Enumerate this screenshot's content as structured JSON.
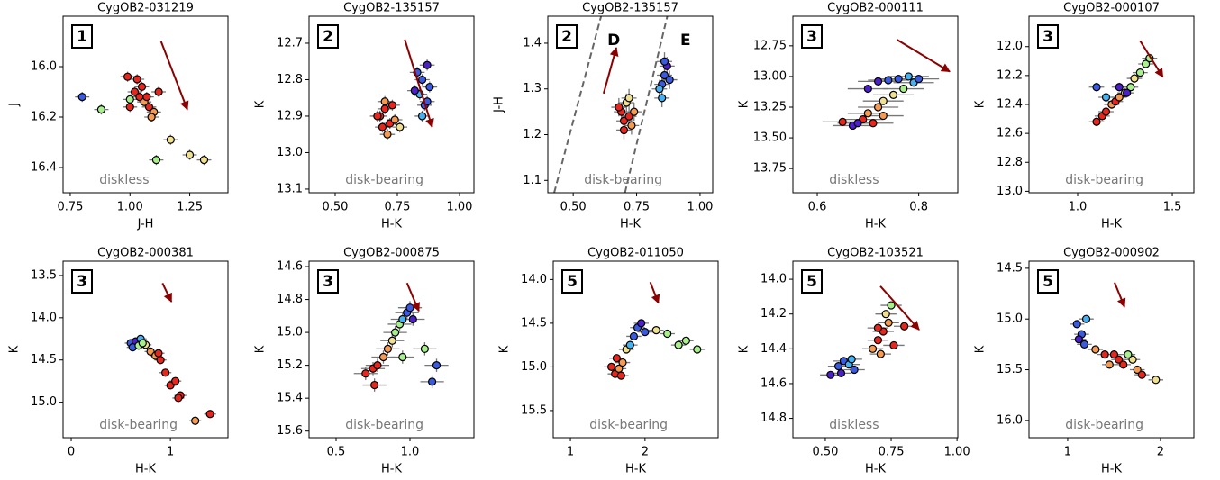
{
  "chart_data": [
    {
      "type": "scatter",
      "title": "CygOB2-031219",
      "xlabel": "J-H",
      "ylabel": "J",
      "panel_label": "1",
      "note": "diskless",
      "y_inverted": true,
      "xlim": [
        0.72,
        1.41
      ],
      "ylim": [
        15.8,
        16.5
      ],
      "xticks": [
        0.75,
        {
          "value": 1.0,
          "label": "1.00"
        },
        1.25
      ],
      "yticks": [
        {
          "value": 16.0,
          "label": "16.0"
        },
        16.2,
        16.4
      ],
      "x": [
        0.8,
        0.88,
        1.17,
        1.11,
        1.25,
        1.31,
        0.99,
        1.02,
        1.04,
        1.06,
        1.08,
        1.1,
        1.0,
        1.05,
        1.07,
        1.03,
        1.09,
        1.12,
        1.0
      ],
      "y": [
        16.12,
        16.17,
        16.29,
        16.37,
        16.35,
        16.37,
        16.04,
        16.1,
        16.12,
        16.14,
        16.16,
        16.18,
        16.13,
        16.08,
        16.12,
        16.05,
        16.2,
        16.1,
        16.16
      ],
      "colors": [
        "#3a5be0",
        "#a8f08c",
        "#f0e090",
        "#a8f08c",
        "#f0e090",
        "#f0e090",
        "#e8261e",
        "#e8261e",
        "#e8261e",
        "#f59a50",
        "#e8261e",
        "#f59a50",
        "#a8f08c",
        "#e8261e",
        "#e8261e",
        "#e8261e",
        "#f59a50",
        "#e8261e",
        "#e8261e"
      ],
      "xerr": 0.03,
      "yerr": 0.02,
      "arrow": {
        "x": [
          1.13,
          1.24
        ],
        "y": [
          15.9,
          16.17
        ]
      },
      "arrow_color": "#8b0000"
    },
    {
      "type": "scatter",
      "title": "CygOB2-135157",
      "xlabel": "H-K",
      "ylabel": "K",
      "panel_label": "2",
      "note": "disk-bearing",
      "y_inverted": true,
      "xlim": [
        0.395,
        1.058
      ],
      "ylim": [
        12.626,
        13.11
      ],
      "xticks": [
        {
          "value": 0.5,
          "label": "0.50"
        },
        0.75,
        {
          "value": 1.0,
          "label": "1.00"
        }
      ],
      "yticks": [
        12.7,
        12.8,
        12.9,
        {
          "value": 13.0,
          "label": "13.0"
        },
        13.1
      ],
      "x": [
        0.68,
        0.7,
        0.72,
        0.74,
        0.69,
        0.71,
        0.73,
        0.76,
        0.7,
        0.67,
        0.83,
        0.85,
        0.87,
        0.84,
        0.86,
        0.88,
        0.82,
        0.85,
        0.87
      ],
      "y": [
        12.9,
        12.88,
        12.92,
        12.91,
        12.93,
        12.95,
        12.87,
        12.93,
        12.86,
        12.9,
        12.78,
        12.8,
        12.76,
        12.84,
        12.87,
        12.82,
        12.83,
        12.9,
        12.86
      ],
      "colors": [
        "#e8261e",
        "#e8261e",
        "#e8261e",
        "#f59a50",
        "#e8261e",
        "#f59a50",
        "#e8261e",
        "#f0e090",
        "#f59a50",
        "#e8261e",
        "#3a5be0",
        "#3a5be0",
        "#4b1fc9",
        "#46b0f0",
        "#3a5be0",
        "#3a5be0",
        "#4b1fc9",
        "#46b0f0",
        "#3a5be0"
      ],
      "xerr": 0.03,
      "yerr": 0.015,
      "arrow": {
        "x": [
          0.78,
          0.89
        ],
        "y": [
          12.69,
          12.93
        ]
      },
      "arrow_color": "#8b0000"
    },
    {
      "type": "scatter",
      "title": "CygOB2-135157",
      "xlabel": "H-K",
      "ylabel": "J-H",
      "panel_label": "2",
      "note": "disk-bearing",
      "y_inverted": false,
      "xlim": [
        0.4,
        1.05
      ],
      "ylim": [
        1.073,
        1.459
      ],
      "xticks": [
        {
          "value": 0.5,
          "label": "0.50"
        },
        0.75,
        {
          "value": 1.0,
          "label": "1.00"
        }
      ],
      "yticks": [
        1.1,
        1.2,
        1.3,
        1.4
      ],
      "x": [
        0.69,
        0.7,
        0.72,
        0.73,
        0.71,
        0.68,
        0.74,
        0.7,
        0.72,
        0.85,
        0.86,
        0.87,
        0.84,
        0.88,
        0.86,
        0.85
      ],
      "y": [
        1.25,
        1.23,
        1.24,
        1.22,
        1.27,
        1.26,
        1.25,
        1.21,
        1.28,
        1.31,
        1.33,
        1.35,
        1.3,
        1.32,
        1.36,
        1.28
      ],
      "colors": [
        "#e8261e",
        "#e8261e",
        "#e8261e",
        "#f59a50",
        "#f0e090",
        "#e8261e",
        "#f59a50",
        "#e8261e",
        "#f0e090",
        "#3a5be0",
        "#3a5be0",
        "#4b1fc9",
        "#46b0f0",
        "#3a5be0",
        "#3a5be0",
        "#46b0f0"
      ],
      "xerr": 0.03,
      "yerr": 0.02,
      "arrow": {
        "x": [
          0.62,
          0.67
        ],
        "y": [
          1.29,
          1.39
        ]
      },
      "arrow_color": "#8b0000",
      "lines": [
        {
          "x": [
            0.425,
            0.61
          ],
          "y": [
            1.073,
            1.459
          ]
        },
        {
          "x": [
            0.704,
            0.871
          ],
          "y": [
            1.073,
            1.459
          ]
        }
      ],
      "region_labels": [
        "D",
        "E"
      ]
    },
    {
      "type": "scatter",
      "title": "CygOB2-000111",
      "xlabel": "H-K",
      "ylabel": "K",
      "panel_label": "3",
      "note": "diskless",
      "y_inverted": true,
      "xlim": [
        0.552,
        0.877
      ],
      "ylim": [
        12.509,
        13.947
      ],
      "xticks": [
        0.6,
        0.8
      ],
      "yticks": [
        12.75,
        {
          "value": 13.0,
          "label": "13.00"
        },
        13.25,
        {
          "value": 13.5,
          "label": "13.50"
        },
        13.75
      ],
      "x": [
        0.65,
        0.67,
        0.69,
        0.7,
        0.72,
        0.73,
        0.75,
        0.77,
        0.79,
        0.8,
        0.7,
        0.72,
        0.74,
        0.76,
        0.78,
        0.71,
        0.73,
        0.68
      ],
      "y": [
        13.37,
        13.4,
        13.35,
        13.3,
        13.25,
        13.2,
        13.15,
        13.1,
        13.05,
        13.02,
        13.1,
        13.04,
        13.03,
        13.02,
        13.0,
        13.38,
        13.32,
        13.38
      ],
      "colors": [
        "#e8261e",
        "#4b1fc9",
        "#e8261e",
        "#f59a50",
        "#f59a50",
        "#f0e090",
        "#f0e090",
        "#a8f08c",
        "#46b0f0",
        "#3a5be0",
        "#4b1fc9",
        "#4b1fc9",
        "#3a5be0",
        "#3a5be0",
        "#46b0f0",
        "#e8261e",
        "#f59a50",
        "#4b1fc9"
      ],
      "xerr": 0.04,
      "yerr": 0.03,
      "arrow": {
        "x": [
          0.757,
          0.861
        ],
        "y": [
          12.7,
          12.96
        ]
      },
      "arrow_color": "#8b0000"
    },
    {
      "type": "scatter",
      "title": "CygOB2-000107",
      "xlabel": "H-K",
      "ylabel": "K",
      "panel_label": "3",
      "note": "disk-bearing",
      "y_inverted": true,
      "xlim": [
        0.743,
        1.614
      ],
      "ylim": [
        11.79,
        13.01
      ],
      "xticks": [
        {
          "value": 1.0,
          "label": "1.0"
        },
        1.5
      ],
      "yticks": [
        {
          "value": 12.0,
          "label": "12.0"
        },
        12.2,
        12.4,
        12.6,
        12.8,
        {
          "value": 13.0,
          "label": "13.0"
        }
      ],
      "x": [
        1.1,
        1.13,
        1.15,
        1.18,
        1.2,
        1.22,
        1.25,
        1.28,
        1.3,
        1.33,
        1.36,
        1.38,
        1.1,
        1.15,
        1.22,
        1.26
      ],
      "y": [
        12.52,
        12.48,
        12.45,
        12.4,
        12.38,
        12.35,
        12.32,
        12.28,
        12.22,
        12.18,
        12.12,
        12.08,
        12.28,
        12.35,
        12.28,
        12.32
      ],
      "colors": [
        "#e8261e",
        "#e8261e",
        "#e8261e",
        "#f59a50",
        "#e8261e",
        "#f59a50",
        "#f0e090",
        "#a8f08c",
        "#f0e090",
        "#a8f08c",
        "#a8f08c",
        "#a8f08c",
        "#3a5be0",
        "#46b0f0",
        "#4b1fc9",
        "#4b1fc9"
      ],
      "xerr": 0.04,
      "yerr": 0.03,
      "arrow": {
        "x": [
          1.33,
          1.45
        ],
        "y": [
          11.96,
          12.21
        ]
      },
      "arrow_color": "#8b0000"
    },
    {
      "type": "scatter",
      "title": "CygOB2-000381",
      "xlabel": "H-K",
      "ylabel": "K",
      "panel_label": "3",
      "note": "disk-bearing",
      "y_inverted": true,
      "xlim": [
        -0.082,
        1.58
      ],
      "ylim": [
        13.33,
        15.42
      ],
      "xticks": [
        0,
        1
      ],
      "yticks": [
        13.5,
        {
          "value": 14.0,
          "label": "14.0"
        },
        14.5,
        {
          "value": 15.0,
          "label": "15.0"
        }
      ],
      "x": [
        0.6,
        0.65,
        0.7,
        0.62,
        0.68,
        0.75,
        0.8,
        0.85,
        0.9,
        0.95,
        1.0,
        1.05,
        1.1,
        1.08,
        1.25,
        1.4,
        0.72,
        0.88
      ],
      "y": [
        14.3,
        14.28,
        14.25,
        14.35,
        14.33,
        14.32,
        14.4,
        14.45,
        14.5,
        14.65,
        14.8,
        14.75,
        14.92,
        14.95,
        15.22,
        15.14,
        14.3,
        14.42
      ],
      "colors": [
        "#3a5be0",
        "#4b1fc9",
        "#46b0f0",
        "#3a5be0",
        "#a8f08c",
        "#f0e090",
        "#f59a50",
        "#f59a50",
        "#e8261e",
        "#e8261e",
        "#e8261e",
        "#e8261e",
        "#e8261e",
        "#e8261e",
        "#f59a50",
        "#e8261e",
        "#a8f08c",
        "#e8261e"
      ],
      "xerr": 0.06,
      "yerr": 0.03,
      "arrow": {
        "x": [
          0.92,
          1.01
        ],
        "y": [
          13.59,
          13.81
        ]
      },
      "arrow_color": "#8b0000"
    },
    {
      "type": "scatter",
      "title": "CygOB2-000875",
      "xlabel": "H-K",
      "ylabel": "K",
      "panel_label": "3",
      "note": "disk-bearing",
      "y_inverted": true,
      "xlim": [
        0.317,
        1.433
      ],
      "ylim": [
        14.567,
        15.64
      ],
      "xticks": [
        0.5,
        {
          "value": 1.0,
          "label": "1.0"
        }
      ],
      "yticks": [
        14.6,
        14.8,
        {
          "value": 15.0,
          "label": "15.0"
        },
        15.2,
        15.4,
        15.6
      ],
      "x": [
        0.7,
        0.75,
        0.78,
        0.82,
        0.85,
        0.88,
        0.9,
        0.93,
        0.95,
        0.98,
        1.0,
        1.02,
        0.95,
        1.18,
        1.15,
        1.1,
        0.76
      ],
      "y": [
        15.25,
        15.22,
        15.2,
        15.15,
        15.1,
        15.05,
        15.0,
        14.95,
        14.92,
        14.88,
        14.85,
        14.92,
        15.15,
        15.2,
        15.3,
        15.1,
        15.32
      ],
      "colors": [
        "#e8261e",
        "#e8261e",
        "#e8261e",
        "#f59a50",
        "#f59a50",
        "#f0e090",
        "#a8f08c",
        "#a8f08c",
        "#46b0f0",
        "#3a5be0",
        "#3a5be0",
        "#4b1fc9",
        "#a8f08c",
        "#3a5be0",
        "#3a5be0",
        "#a8f08c",
        "#e8261e"
      ],
      "xerr": 0.08,
      "yerr": 0.04,
      "arrow": {
        "x": [
          0.98,
          1.06
        ],
        "y": [
          14.7,
          14.87
        ]
      },
      "arrow_color": "#8b0000"
    },
    {
      "type": "scatter",
      "title": "CygOB2-011050",
      "xlabel": "H-K",
      "ylabel": "K",
      "panel_label": "5",
      "note": "disk-bearing",
      "y_inverted": true,
      "xlim": [
        0.77,
        2.98
      ],
      "ylim": [
        13.79,
        15.81
      ],
      "xticks": [
        1,
        2
      ],
      "yticks": [
        {
          "value": 14.0,
          "label": "14.0"
        },
        14.5,
        {
          "value": 15.0,
          "label": "15.0"
        },
        15.5
      ],
      "x": [
        1.55,
        1.6,
        1.65,
        1.7,
        1.62,
        1.75,
        1.8,
        1.85,
        1.9,
        1.95,
        2.0,
        2.15,
        2.3,
        2.45,
        2.55,
        2.7,
        1.68
      ],
      "y": [
        15.0,
        15.08,
        15.02,
        14.95,
        14.9,
        14.8,
        14.75,
        14.65,
        14.55,
        14.5,
        14.6,
        14.58,
        14.62,
        14.75,
        14.7,
        14.8,
        15.1
      ],
      "colors": [
        "#e8261e",
        "#e8261e",
        "#f59a50",
        "#f59a50",
        "#e8261e",
        "#f0e090",
        "#46b0f0",
        "#3a5be0",
        "#3a5be0",
        "#4b1fc9",
        "#3a5be0",
        "#f0e090",
        "#a8f08c",
        "#a8f08c",
        "#a8f08c",
        "#a8f08c",
        "#e8261e"
      ],
      "xerr": 0.1,
      "yerr": 0.04,
      "arrow": {
        "x": [
          2.07,
          2.18
        ],
        "y": [
          14.03,
          14.27
        ]
      },
      "arrow_color": "#8b0000"
    },
    {
      "type": "scatter",
      "title": "CygOB2-103521",
      "xlabel": "H-K",
      "ylabel": "K",
      "panel_label": "5",
      "note": "diskless",
      "y_inverted": true,
      "xlim": [
        0.377,
        1.003
      ],
      "ylim": [
        13.896,
        14.911
      ],
      "xticks": [
        {
          "value": 0.5,
          "label": "0.50"
        },
        0.75,
        {
          "value": 1.0,
          "label": "1.00"
        }
      ],
      "yticks": [
        {
          "value": 14.0,
          "label": "14.0"
        },
        14.2,
        14.4,
        14.6,
        14.8
      ],
      "x": [
        0.52,
        0.55,
        0.57,
        0.59,
        0.61,
        0.56,
        0.6,
        0.68,
        0.7,
        0.72,
        0.74,
        0.76,
        0.73,
        0.75,
        0.7,
        0.8,
        0.71
      ],
      "y": [
        14.55,
        14.5,
        14.47,
        14.49,
        14.52,
        14.54,
        14.46,
        14.4,
        14.35,
        14.3,
        14.25,
        14.38,
        14.2,
        14.15,
        14.28,
        14.27,
        14.43
      ],
      "colors": [
        "#4b1fc9",
        "#3a5be0",
        "#3a5be0",
        "#46b0f0",
        "#3a5be0",
        "#4b1fc9",
        "#46b0f0",
        "#f59a50",
        "#e8261e",
        "#e8261e",
        "#f59a50",
        "#e8261e",
        "#f0e090",
        "#a8f08c",
        "#e8261e",
        "#e8261e",
        "#f59a50"
      ],
      "xerr": 0.04,
      "yerr": 0.02,
      "arrow": {
        "x": [
          0.709,
          0.856
        ],
        "y": [
          14.04,
          14.29
        ]
      },
      "arrow_color": "#8b0000"
    },
    {
      "type": "scatter",
      "title": "CygOB2-000902",
      "xlabel": "H-K",
      "ylabel": "K",
      "panel_label": "5",
      "note": "disk-bearing",
      "y_inverted": true,
      "xlim": [
        0.583,
        2.36
      ],
      "ylim": [
        14.43,
        16.17
      ],
      "xticks": [
        1,
        2
      ],
      "yticks": [
        14.5,
        {
          "value": 15.0,
          "label": "15.0"
        },
        15.5,
        {
          "value": 16.0,
          "label": "16.0"
        }
      ],
      "x": [
        1.1,
        1.15,
        1.2,
        1.12,
        1.18,
        1.3,
        1.4,
        1.5,
        1.55,
        1.6,
        1.7,
        1.75,
        1.8,
        1.65,
        1.95,
        1.45
      ],
      "y": [
        15.05,
        15.15,
        15.0,
        15.2,
        15.25,
        15.3,
        15.35,
        15.35,
        15.4,
        15.45,
        15.4,
        15.5,
        15.55,
        15.35,
        15.6,
        15.45
      ],
      "colors": [
        "#3a5be0",
        "#3a5be0",
        "#46b0f0",
        "#4b1fc9",
        "#3a5be0",
        "#f59a50",
        "#e8261e",
        "#e8261e",
        "#e8261e",
        "#e8261e",
        "#f0e090",
        "#f59a50",
        "#e8261e",
        "#a8f08c",
        "#f0e090",
        "#f59a50"
      ],
      "xerr": 0.08,
      "yerr": 0.03,
      "arrow": {
        "x": [
          1.505,
          1.612
        ],
        "y": [
          14.64,
          14.88
        ]
      },
      "arrow_color": "#8b0000"
    }
  ]
}
